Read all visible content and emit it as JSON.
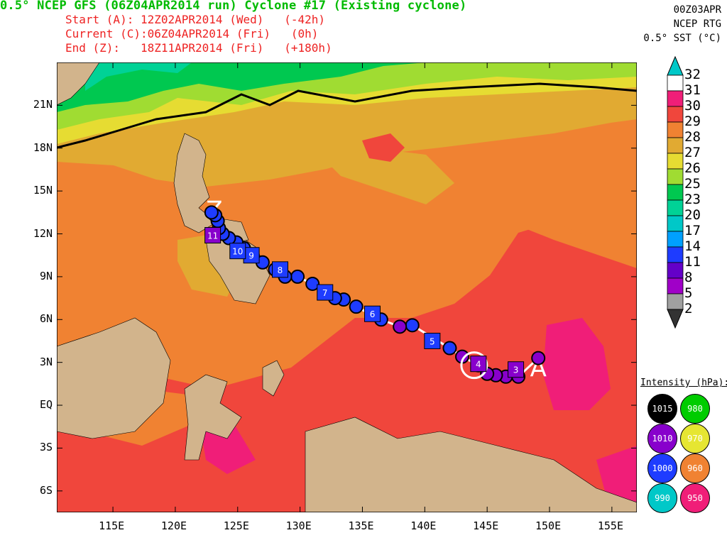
{
  "header": {
    "title": "0.5° NCEP GFS (06Z04APR2014 run) Cyclone #17 (Existing cyclone)",
    "rows": [
      {
        "label": "Start (A):",
        "time": "12Z02APR2014 (Wed)",
        "offset": "(-42h)"
      },
      {
        "label": "Current (C):",
        "time": "06Z04APR2014 (Fri)",
        "offset": "(0h)"
      },
      {
        "label": "End (Z):",
        "time": "18Z11APR2014 (Fri)",
        "offset": "(+180h)"
      }
    ]
  },
  "sst_info": {
    "date": "00Z03APR",
    "source": "NCEP RTG",
    "product": "0.5° SST (°C)"
  },
  "map": {
    "lat_ticks": [
      "21N",
      "18N",
      "15N",
      "12N",
      "9N",
      "6N",
      "3N",
      "EQ",
      "3S",
      "6S"
    ],
    "lon_ticks": [
      "115E",
      "120E",
      "125E",
      "130E",
      "135E",
      "140E",
      "145E",
      "150E",
      "155E"
    ],
    "lat_range": [
      -7.5,
      24
    ],
    "lon_range": [
      110.5,
      157
    ],
    "colors": {
      "sst_31_plus": "#e8e8e8",
      "sst_30_31": "#f01e78",
      "sst_29_30": "#f0463c",
      "sst_28_29": "#f08232",
      "sst_27_28": "#e1aa32",
      "sst_26_27": "#e6dc32",
      "sst_25_26": "#a0dc32",
      "sst_23_25": "#00c850",
      "sst_20_23": "#00d296",
      "land": "#d2b48c"
    }
  },
  "track": {
    "start_marker": "A",
    "current_marker": "C",
    "end_marker": "Z",
    "points": [
      {
        "lon": 149.1,
        "lat": 3.3,
        "intensity": "1010"
      },
      {
        "lon": 147.5,
        "lat": 2.0,
        "intensity": "1010"
      },
      {
        "lon": 146.5,
        "lat": 2.0,
        "intensity": "1010"
      },
      {
        "lon": 145.7,
        "lat": 2.1,
        "intensity": "1010"
      },
      {
        "lon": 145.0,
        "lat": 2.2,
        "intensity": "1010"
      },
      {
        "lon": 144.3,
        "lat": 2.8,
        "intensity": "1000"
      },
      {
        "lon": 143.0,
        "lat": 3.4,
        "intensity": "1010"
      },
      {
        "lon": 142.0,
        "lat": 4.0,
        "intensity": "1000"
      },
      {
        "lon": 139.0,
        "lat": 5.6,
        "intensity": "1000"
      },
      {
        "lon": 138.0,
        "lat": 5.5,
        "intensity": "1010"
      },
      {
        "lon": 136.5,
        "lat": 6.0,
        "intensity": "1000"
      },
      {
        "lon": 134.5,
        "lat": 6.9,
        "intensity": "1000"
      },
      {
        "lon": 133.5,
        "lat": 7.4,
        "intensity": "1000"
      },
      {
        "lon": 132.8,
        "lat": 7.5,
        "intensity": "1000"
      },
      {
        "lon": 131.0,
        "lat": 8.5,
        "intensity": "1000"
      },
      {
        "lon": 129.8,
        "lat": 9.0,
        "intensity": "1000"
      },
      {
        "lon": 128.8,
        "lat": 9.0,
        "intensity": "1000"
      },
      {
        "lon": 128.0,
        "lat": 9.5,
        "intensity": "1000"
      },
      {
        "lon": 127.0,
        "lat": 10.0,
        "intensity": "1000"
      },
      {
        "lon": 126.2,
        "lat": 10.5,
        "intensity": "1000"
      },
      {
        "lon": 125.5,
        "lat": 11.0,
        "intensity": "1000"
      },
      {
        "lon": 124.9,
        "lat": 11.4,
        "intensity": "1000"
      },
      {
        "lon": 124.3,
        "lat": 11.7,
        "intensity": "1000"
      },
      {
        "lon": 123.8,
        "lat": 12.0,
        "intensity": "1000"
      },
      {
        "lon": 123.5,
        "lat": 12.4,
        "intensity": "1000"
      },
      {
        "lon": 123.4,
        "lat": 12.9,
        "intensity": "1000"
      },
      {
        "lon": 123.2,
        "lat": 13.3,
        "intensity": "1000"
      },
      {
        "lon": 122.9,
        "lat": 13.5,
        "intensity": "1000"
      }
    ],
    "day_markers": [
      {
        "label": "3",
        "lon": 147.3,
        "lat": 2.5,
        "intensity": "1010"
      },
      {
        "label": "4",
        "lon": 144.3,
        "lat": 2.9,
        "intensity": "1010"
      },
      {
        "label": "5",
        "lon": 140.6,
        "lat": 4.5,
        "intensity": "1000"
      },
      {
        "label": "6",
        "lon": 135.8,
        "lat": 6.4,
        "intensity": "1000"
      },
      {
        "label": "7",
        "lon": 132.0,
        "lat": 7.9,
        "intensity": "1000"
      },
      {
        "label": "8",
        "lon": 128.4,
        "lat": 9.5,
        "intensity": "1000"
      },
      {
        "label": "9",
        "lon": 126.1,
        "lat": 10.5,
        "intensity": "1000"
      },
      {
        "label": "10",
        "lon": 125.0,
        "lat": 10.8,
        "intensity": "1000"
      },
      {
        "label": "11",
        "lon": 123.0,
        "lat": 11.9,
        "intensity": "1010"
      }
    ]
  },
  "colorbar": {
    "labels": [
      "32",
      "31",
      "30",
      "29",
      "28",
      "27",
      "26",
      "25",
      "23",
      "20",
      "17",
      "14",
      "11",
      "8",
      "5",
      "2"
    ],
    "colors": [
      "#ffffff",
      "#f01e78",
      "#f0463c",
      "#f08232",
      "#e1aa32",
      "#e6dc32",
      "#a0dc32",
      "#00c850",
      "#00d296",
      "#00c8c8",
      "#00a0ff",
      "#1e3cff",
      "#6400c8",
      "#a000c8",
      "#a0a0a0"
    ],
    "top_arrow_color": "#00c8c8"
  },
  "intensity_legend": {
    "title": "Intensity (hPa):",
    "items": [
      {
        "label": "1015",
        "color": "#000000"
      },
      {
        "label": "980",
        "color": "#00cc00"
      },
      {
        "label": "1010",
        "color": "#8800cc"
      },
      {
        "label": "970",
        "color": "#e6e632"
      },
      {
        "label": "1000",
        "color": "#1e3cff"
      },
      {
        "label": "960",
        "color": "#f08232"
      },
      {
        "label": "990",
        "color": "#00c8c8"
      },
      {
        "label": "950",
        "color": "#f01e78"
      }
    ]
  }
}
